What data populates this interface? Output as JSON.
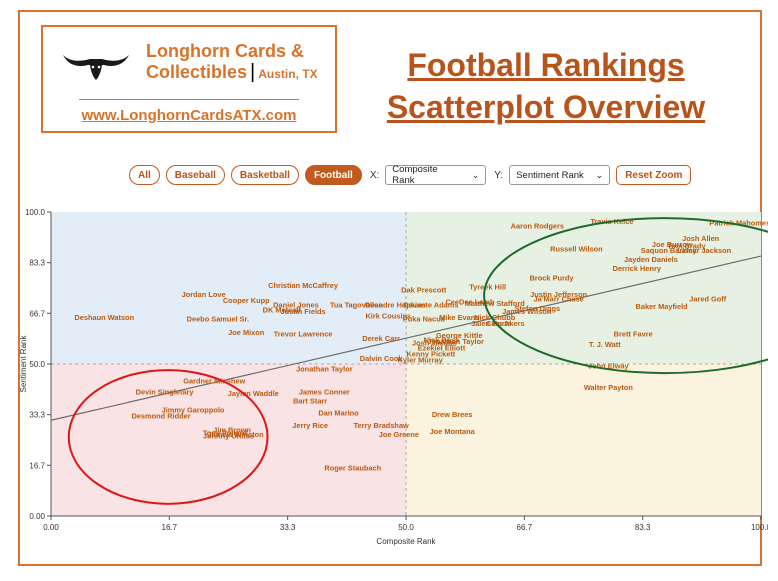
{
  "brand": {
    "name_line1": "Longhorn Cards &",
    "name_line2": "Collectibles",
    "city": "Austin, TX",
    "url": "www.LonghornCardsATX.com",
    "logo_icon": "longhorn-steer-icon"
  },
  "title": {
    "line1": "Football Rankings",
    "line2": "Scatterplot Overview"
  },
  "controls": {
    "filters": [
      "All",
      "Baseball",
      "Basketball",
      "Football"
    ],
    "active_filter": "Football",
    "x_label": "X:",
    "x_select": "Composite Rank",
    "y_label": "Y:",
    "y_select": "Sentiment Rank",
    "reset_label": "Reset Zoom"
  },
  "colors": {
    "accent": "#c05a1f",
    "label": "#b95a10",
    "q_top_left": "#e3edf8",
    "q_top_right": "#e6f1e4",
    "q_bottom_left": "#f9e3e4",
    "q_bottom_right": "#fbf3dd",
    "circle_green": "#1e6b2a",
    "circle_red": "#e01515"
  },
  "chart_data": {
    "type": "scatter",
    "xlabel": "Composite Rank",
    "ylabel": "Sentiment Rank",
    "xlim": [
      0,
      100
    ],
    "ylim": [
      0,
      100
    ],
    "xticks": [
      "0.00",
      "16.7",
      "33.3",
      "50.0",
      "66.7",
      "83.3",
      "100.0"
    ],
    "yticks": [
      "0.00",
      "16.7",
      "33.3",
      "50.0",
      "66.7",
      "83.3",
      "100.0"
    ],
    "midlines": {
      "x": 50,
      "y": 50
    },
    "trendline": {
      "x0": 0,
      "y0": 31.5,
      "x1": 100,
      "y1": 85.5
    },
    "highlights": [
      {
        "color": "green",
        "cx": 86.5,
        "cy": 72.5,
        "rx": 25.5,
        "ry": 25.5
      },
      {
        "color": "red",
        "cx": 16.5,
        "cy": 26,
        "rx": 14,
        "ry": 22
      }
    ],
    "points": [
      {
        "name": "Aaron Rodgers",
        "x": 68.5,
        "y": 95.5
      },
      {
        "name": "Travis Kelce",
        "x": 79,
        "y": 97
      },
      {
        "name": "Patrick Mahomes",
        "x": 97,
        "y": 96.5
      },
      {
        "name": "Josh Allen",
        "x": 91.5,
        "y": 91.5
      },
      {
        "name": "Joe Burrow",
        "x": 87.5,
        "y": 89.5
      },
      {
        "name": "Tom Brady",
        "x": 89.5,
        "y": 89
      },
      {
        "name": "Saquon Barkley",
        "x": 87,
        "y": 87.5
      },
      {
        "name": "Lamar Jackson",
        "x": 92,
        "y": 87.5
      },
      {
        "name": "Russell Wilson",
        "x": 74,
        "y": 88
      },
      {
        "name": "Jayden Daniels",
        "x": 84.5,
        "y": 84.5
      },
      {
        "name": "Derrick Henry",
        "x": 82.5,
        "y": 81.5
      },
      {
        "name": "Brock Purdy",
        "x": 70.5,
        "y": 78.5
      },
      {
        "name": "Tyreek Hill",
        "x": 61.5,
        "y": 75.5
      },
      {
        "name": "Dak Prescott",
        "x": 52.5,
        "y": 74.5
      },
      {
        "name": "Justin Jefferson",
        "x": 71.5,
        "y": 73
      },
      {
        "name": "Ja'Marr Chase",
        "x": 71.5,
        "y": 71.5
      },
      {
        "name": "Jared Goff",
        "x": 92.5,
        "y": 71.5
      },
      {
        "name": "Christian McCaffrey",
        "x": 35.5,
        "y": 76
      },
      {
        "name": "Jordan Love",
        "x": 21.5,
        "y": 73
      },
      {
        "name": "Cooper Kupp",
        "x": 27.5,
        "y": 71
      },
      {
        "name": "Daniel Jones",
        "x": 34.5,
        "y": 69.5
      },
      {
        "name": "DK Metcalf",
        "x": 32.5,
        "y": 68
      },
      {
        "name": "Justin Fields",
        "x": 35.5,
        "y": 67.5
      },
      {
        "name": "Tua Tagovailoa",
        "x": 43,
        "y": 69.5
      },
      {
        "name": "Deandre Hopkins",
        "x": 48.5,
        "y": 69.5
      },
      {
        "name": "Davante Adams",
        "x": 53.5,
        "y": 69.5
      },
      {
        "name": "CeeDee Lamb",
        "x": 59,
        "y": 70.5
      },
      {
        "name": "Matthew Stafford",
        "x": 62.5,
        "y": 70
      },
      {
        "name": "Stefon Diggs",
        "x": 68.5,
        "y": 68.5
      },
      {
        "name": "James Wilson",
        "x": 67,
        "y": 67.5
      },
      {
        "name": "Baker Mayfield",
        "x": 86,
        "y": 69
      },
      {
        "name": "Deshaun Watson",
        "x": 7.5,
        "y": 65.5
      },
      {
        "name": "Deebo Samuel Sr.",
        "x": 23.5,
        "y": 65
      },
      {
        "name": "Kirk Cousins",
        "x": 47.5,
        "y": 66
      },
      {
        "name": "Puka Nacua",
        "x": 52.5,
        "y": 65
      },
      {
        "name": "Mike Evans",
        "x": 57.5,
        "y": 65.5
      },
      {
        "name": "Nick Chubb",
        "x": 62.5,
        "y": 65.5
      },
      {
        "name": "Jalen Hurts",
        "x": 62,
        "y": 63.5
      },
      {
        "name": "Cam Akers",
        "x": 64,
        "y": 63.5
      },
      {
        "name": "Joe Mixon",
        "x": 27.5,
        "y": 60.5
      },
      {
        "name": "Trevor Lawrence",
        "x": 35.5,
        "y": 60
      },
      {
        "name": "Derek Carr",
        "x": 46.5,
        "y": 58.5
      },
      {
        "name": "George Kittle",
        "x": 57.5,
        "y": 59.5
      },
      {
        "name": "Josh Jacobs",
        "x": 54,
        "y": 57
      },
      {
        "name": "Jonathan Taylor",
        "x": 57,
        "y": 57.5
      },
      {
        "name": "Nick Bosa",
        "x": 55,
        "y": 58
      },
      {
        "name": "Brett Favre",
        "x": 82,
        "y": 60
      },
      {
        "name": "T. J. Watt",
        "x": 78,
        "y": 56.5
      },
      {
        "name": "Ezekiel Elliott",
        "x": 55,
        "y": 55.5
      },
      {
        "name": "Kenny Pickett",
        "x": 53.5,
        "y": 53.5
      },
      {
        "name": "Dalvin Cook",
        "x": 46.5,
        "y": 52
      },
      {
        "name": "Kyler Murray",
        "x": 52,
        "y": 51.5
      },
      {
        "name": "Jonathan Taylor",
        "x": 38.5,
        "y": 48.5
      },
      {
        "name": "John Elway",
        "x": 78.5,
        "y": 49.5
      },
      {
        "name": "Gardner Minshew",
        "x": 23,
        "y": 44.5
      },
      {
        "name": "Devin Singletary",
        "x": 16,
        "y": 41
      },
      {
        "name": "Jaylen Waddle",
        "x": 28.5,
        "y": 40.5
      },
      {
        "name": "James Conner",
        "x": 38.5,
        "y": 41
      },
      {
        "name": "Walter Payton",
        "x": 78.5,
        "y": 42.5
      },
      {
        "name": "Bart Starr",
        "x": 36.5,
        "y": 38
      },
      {
        "name": "Jimmy Garoppolo",
        "x": 20,
        "y": 35
      },
      {
        "name": "Desmond Ridder",
        "x": 15.5,
        "y": 33
      },
      {
        "name": "Dan Marino",
        "x": 40.5,
        "y": 34
      },
      {
        "name": "Drew Brees",
        "x": 56.5,
        "y": 33.5
      },
      {
        "name": "Jerry Rice",
        "x": 36.5,
        "y": 30
      },
      {
        "name": "Terry Bradshaw",
        "x": 46.5,
        "y": 30
      },
      {
        "name": "Jim Brown",
        "x": 25.5,
        "y": 28.5
      },
      {
        "name": "Tony Pollard",
        "x": 24.5,
        "y": 27.5
      },
      {
        "name": "Jameis Winston",
        "x": 26,
        "y": 27
      },
      {
        "name": "Johnny Unitas",
        "x": 25,
        "y": 26.5
      },
      {
        "name": "Joe Montana",
        "x": 56.5,
        "y": 28
      },
      {
        "name": "Joe Greene",
        "x": 49,
        "y": 27
      },
      {
        "name": "Roger Staubach",
        "x": 42.5,
        "y": 16
      }
    ]
  }
}
